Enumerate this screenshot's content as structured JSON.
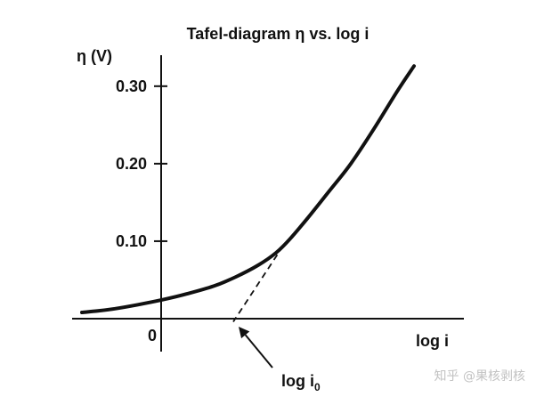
{
  "watermark": "知乎 @果核剥核",
  "colors": {
    "ink": "#111111",
    "watermark": "#c2c2c2"
  },
  "chart_data": {
    "type": "line",
    "title": "Tafel-diagram η vs. log i",
    "xlabel": "log i",
    "ylabel": "η (V)",
    "xlim": [
      -1.0,
      3.4
    ],
    "ylim": [
      -0.0425,
      0.34
    ],
    "xticks": [
      0
    ],
    "xtick_labels": [
      "0"
    ],
    "yticks": [
      0.1,
      0.2,
      0.3
    ],
    "ytick_labels": [
      "0.10",
      "0.20",
      "0.30"
    ],
    "grid": false,
    "legend": "none",
    "series": [
      {
        "x": [
          -0.89,
          -0.71,
          -0.51,
          -0.26,
          0.0,
          0.29,
          0.59,
          0.84,
          1.09,
          1.29,
          1.44,
          1.64,
          1.89,
          2.13,
          2.39,
          2.66,
          2.84
        ],
        "y": [
          0.008,
          0.01,
          0.013,
          0.018,
          0.024,
          0.032,
          0.042,
          0.054,
          0.069,
          0.085,
          0.102,
          0.129,
          0.165,
          0.2,
          0.245,
          0.295,
          0.326
        ]
      }
    ],
    "extrapolation": {
      "style": "dashed",
      "x": [
        1.37,
        0.81
      ],
      "y": [
        0.094,
        -0.004
      ]
    },
    "annotations": [
      {
        "text": "log i",
        "subscript": "0",
        "x": 0.81,
        "y": 0.0,
        "arrow": true
      }
    ]
  }
}
